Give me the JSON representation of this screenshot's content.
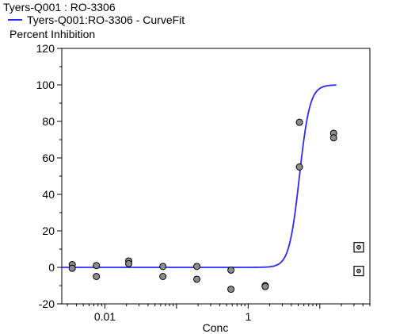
{
  "chart_data": {
    "type": "scatter",
    "title": "Tyers-Q001  : RO-3306",
    "legend": [
      {
        "name": "Tyers-Q001:RO-3306 - CurveFit",
        "color": "#2a2aff"
      }
    ],
    "ylabel": "Percent Inhibition",
    "xlabel": "Conc",
    "xscale": "log",
    "xlim": [
      0.0025,
      50
    ],
    "ylim": [
      -20,
      120
    ],
    "yticks": [
      -20,
      0,
      20,
      40,
      60,
      80,
      100,
      120
    ],
    "xticks": [
      {
        "value": 0.01,
        "label": "0.01"
      },
      {
        "value": 1,
        "label": "1"
      }
    ],
    "points": [
      {
        "x": 0.0035,
        "y": 1.5
      },
      {
        "x": 0.0035,
        "y": -0.5
      },
      {
        "x": 0.0076,
        "y": 1
      },
      {
        "x": 0.0076,
        "y": -5
      },
      {
        "x": 0.0215,
        "y": 3.5
      },
      {
        "x": 0.0215,
        "y": 2
      },
      {
        "x": 0.0645,
        "y": 0.5
      },
      {
        "x": 0.0645,
        "y": -5
      },
      {
        "x": 0.192,
        "y": 0.5
      },
      {
        "x": 0.192,
        "y": -6.5
      },
      {
        "x": 0.575,
        "y": -1.5
      },
      {
        "x": 0.575,
        "y": -12
      },
      {
        "x": 1.73,
        "y": -10
      },
      {
        "x": 1.73,
        "y": -10.5
      },
      {
        "x": 5.2,
        "y": 79.5
      },
      {
        "x": 5.2,
        "y": 55
      },
      {
        "x": 15.6,
        "y": 73.5
      },
      {
        "x": 15.6,
        "y": 71
      }
    ],
    "excluded_points": [
      {
        "x": 35,
        "y": 11
      },
      {
        "x": 35,
        "y": -2
      }
    ],
    "curve": {
      "bottom": 0,
      "top": 100,
      "ec50": 5.2,
      "hill": 6,
      "x_start": 0.0025,
      "x_end": 17
    },
    "colors": {
      "curve": "#2a2aff",
      "marker_fill": "#8c8c8c"
    }
  }
}
